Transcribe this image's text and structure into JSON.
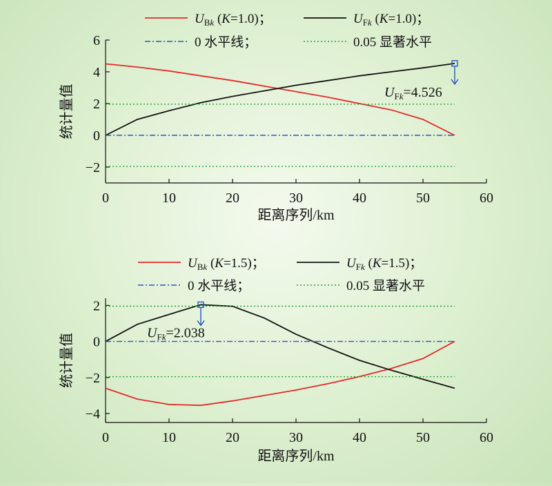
{
  "chart_data": [
    {
      "type": "line",
      "title": "",
      "xlabel": "距离序列/km",
      "ylabel": "统计量值",
      "xlim": [
        0,
        60
      ],
      "ylim": [
        -3,
        6
      ],
      "xticks": [
        0,
        10,
        20,
        30,
        40,
        50,
        60
      ],
      "yticks": [
        -2,
        0,
        2,
        4,
        6
      ],
      "xtick_labels": [
        "0",
        "10",
        "20",
        "30",
        "40",
        "50",
        "60"
      ],
      "ytick_labels": [
        "−2",
        "0",
        "2",
        "4",
        "6"
      ],
      "grid": false,
      "legend_position": "top",
      "series": [
        {
          "name": "UBk (K=1.0)；",
          "color": "#e8282a",
          "dash": "solid",
          "x": [
            0,
            5,
            10,
            15,
            20,
            25,
            30,
            35,
            40,
            45,
            50,
            55
          ],
          "values": [
            4.5,
            4.3,
            4.05,
            3.75,
            3.45,
            3.1,
            2.75,
            2.4,
            2.0,
            1.6,
            1.0,
            0.0
          ]
        },
        {
          "name": "UFk (K=1.0)；",
          "color": "#111111",
          "dash": "solid",
          "x": [
            0,
            5,
            10,
            15,
            20,
            25,
            30,
            35,
            40,
            45,
            50,
            55
          ],
          "values": [
            0.0,
            1.0,
            1.55,
            2.05,
            2.45,
            2.8,
            3.15,
            3.45,
            3.75,
            4.0,
            4.25,
            4.526
          ]
        },
        {
          "name": "0 水平线；",
          "color": "#2a55c0",
          "dash": "dashdot",
          "x": [
            0,
            55
          ],
          "values": [
            0,
            0
          ]
        },
        {
          "name": "0.05 显著水平",
          "color": "#22a030",
          "dash": "dotted",
          "x": [
            0,
            55
          ],
          "values": [
            1.96,
            1.96
          ]
        },
        {
          "name": "",
          "color": "#22a030",
          "dash": "dotted",
          "x": [
            0,
            55
          ],
          "values": [
            -1.96,
            -1.96
          ]
        }
      ],
      "annotation": {
        "label_main": "U",
        "label_sub": "F",
        "label_sub_italic": "k",
        "label_value": "=4.526",
        "x": 55,
        "y": 4.526
      }
    },
    {
      "type": "line",
      "title": "",
      "xlabel": "距离序列/km",
      "ylabel": "统计量值",
      "xlim": [
        0,
        60
      ],
      "ylim": [
        -4.5,
        2.4
      ],
      "xticks": [
        0,
        10,
        20,
        30,
        40,
        50,
        60
      ],
      "yticks": [
        -4,
        -2,
        0,
        2
      ],
      "xtick_labels": [
        "0",
        "10",
        "20",
        "30",
        "40",
        "50",
        "60"
      ],
      "ytick_labels": [
        "−4",
        "−2",
        "0",
        "2"
      ],
      "grid": false,
      "legend_position": "top",
      "series": [
        {
          "name": "UBk (K=1.5)；",
          "color": "#e8282a",
          "dash": "solid",
          "x": [
            0,
            5,
            10,
            15,
            20,
            25,
            30,
            35,
            40,
            45,
            50,
            55
          ],
          "values": [
            -2.6,
            -3.2,
            -3.5,
            -3.55,
            -3.3,
            -3.0,
            -2.7,
            -2.35,
            -1.95,
            -1.5,
            -0.95,
            0.0
          ]
        },
        {
          "name": "UFk (K=1.5)；",
          "color": "#111111",
          "dash": "solid",
          "x": [
            0,
            5,
            10,
            15,
            20,
            25,
            30,
            35,
            40,
            45,
            50,
            55
          ],
          "values": [
            0.0,
            0.95,
            1.5,
            2.038,
            1.95,
            1.3,
            0.4,
            -0.35,
            -1.05,
            -1.6,
            -2.1,
            -2.6
          ]
        },
        {
          "name": "0 水平线；",
          "color": "#2a55c0",
          "dash": "dashdot",
          "x": [
            0,
            55
          ],
          "values": [
            0,
            0
          ]
        },
        {
          "name": "0.05 显著水平",
          "color": "#22a030",
          "dash": "dotted",
          "x": [
            0,
            55
          ],
          "values": [
            1.96,
            1.96
          ]
        },
        {
          "name": "",
          "color": "#22a030",
          "dash": "dotted",
          "x": [
            0,
            55
          ],
          "values": [
            -1.96,
            -1.96
          ]
        }
      ],
      "annotation": {
        "label_main": "U",
        "label_sub": "F",
        "label_sub_italic": "k",
        "label_value": "=2.038",
        "x": 15,
        "y": 2.038
      }
    }
  ]
}
